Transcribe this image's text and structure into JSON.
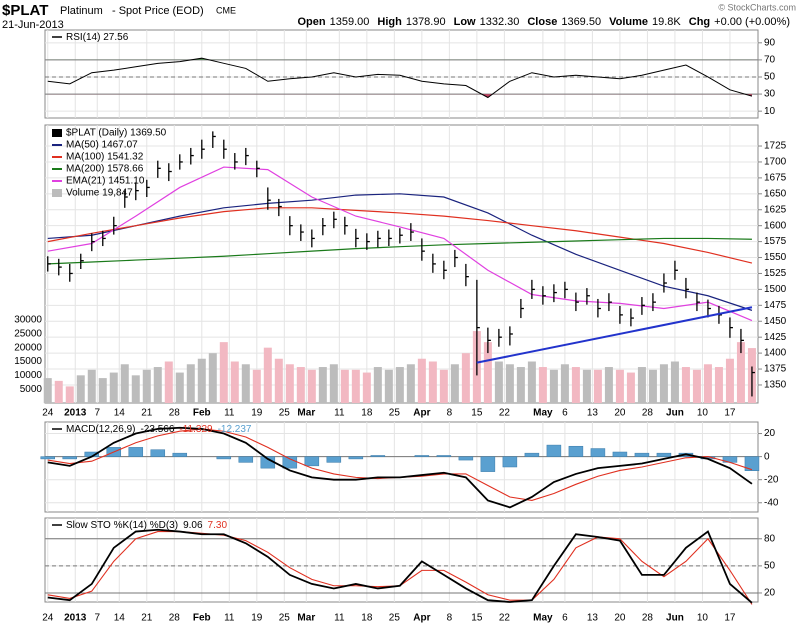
{
  "header": {
    "symbol": "$PLAT",
    "name": "Platinum",
    "desc": "- Spot Price (EOD)",
    "exchange": "CME",
    "date": "21-Jun-2013",
    "quote": [
      {
        "label": "Open",
        "value": "1359.00"
      },
      {
        "label": "High",
        "value": "1378.90"
      },
      {
        "label": "Low",
        "value": "1332.30"
      },
      {
        "label": "Close",
        "value": "1369.50"
      },
      {
        "label": "Volume",
        "value": "19.8K"
      },
      {
        "label": "Chg",
        "value": "+0.00 (+0.00%)"
      }
    ],
    "copyright": "© StockCharts.com"
  },
  "chart_data": [
    {
      "type": "line",
      "title": "RSI(14) 27.56",
      "x": [
        0,
        4,
        8,
        12,
        16,
        20,
        24,
        28,
        32,
        36,
        40,
        44,
        48,
        52,
        56,
        60,
        64,
        68,
        72,
        76,
        80,
        84,
        88,
        92,
        96,
        100,
        104,
        108,
        112,
        116,
        120,
        124,
        128
      ],
      "series": [
        {
          "color": "#000000",
          "values": [
            45,
            42,
            55,
            58,
            62,
            66,
            68,
            72,
            66,
            60,
            45,
            48,
            50,
            55,
            50,
            53,
            52,
            45,
            42,
            40,
            26,
            45,
            55,
            50,
            52,
            50,
            48,
            52,
            58,
            64,
            50,
            35,
            27.56
          ]
        }
      ],
      "ylim": [
        2,
        105
      ],
      "yticks": [
        10,
        30,
        50,
        70,
        90
      ],
      "reference_lines": [
        {
          "value": 70
        },
        {
          "value": 50,
          "dashed": true
        },
        {
          "value": 30
        }
      ],
      "fills": [
        {
          "level": 70,
          "side": "above",
          "color": "#4a8a4a"
        },
        {
          "level": 30,
          "side": "below",
          "color": "#c04060"
        }
      ]
    },
    {
      "type": "ohlc",
      "title": "$PLAT (Daily) 1369.50",
      "color": "#000000",
      "xlim": [
        -0.5,
        129.1
      ],
      "xticks": [
        {
          "value": 0,
          "label": "24"
        },
        {
          "value": 5,
          "label": "2013"
        },
        {
          "value": 9,
          "label": "7"
        },
        {
          "value": 13,
          "label": "14"
        },
        {
          "value": 18,
          "label": "21"
        },
        {
          "value": 23,
          "label": "28"
        },
        {
          "value": 28,
          "label": "Feb"
        },
        {
          "value": 33,
          "label": "11"
        },
        {
          "value": 38,
          "label": "19"
        },
        {
          "value": 43,
          "label": "25"
        },
        {
          "value": 47,
          "label": "Mar"
        },
        {
          "value": 53,
          "label": "11"
        },
        {
          "value": 58,
          "label": "18"
        },
        {
          "value": 63,
          "label": "25"
        },
        {
          "value": 68,
          "label": "Apr"
        },
        {
          "value": 73,
          "label": "8"
        },
        {
          "value": 78,
          "label": "15"
        },
        {
          "value": 83,
          "label": "22"
        },
        {
          "value": 90,
          "label": "May"
        },
        {
          "value": 94,
          "label": "6"
        },
        {
          "value": 99,
          "label": "13"
        },
        {
          "value": 104,
          "label": "20"
        },
        {
          "value": 109,
          "label": "28"
        },
        {
          "value": 114,
          "label": "Jun"
        },
        {
          "value": 119,
          "label": "10"
        },
        {
          "value": 124,
          "label": "17"
        }
      ],
      "ylim": [
        1321.7,
        1758
      ],
      "yticks": [
        1350,
        1375,
        1400,
        1425,
        1450,
        1475,
        1500,
        1525,
        1550,
        1575,
        1600,
        1625,
        1650,
        1675,
        1700,
        1725
      ],
      "x": [
        0,
        2,
        4,
        6,
        8,
        10,
        12,
        14,
        16,
        18,
        20,
        22,
        24,
        26,
        28,
        30,
        32,
        34,
        36,
        38,
        40,
        42,
        44,
        46,
        48,
        50,
        52,
        54,
        56,
        58,
        60,
        62,
        64,
        66,
        68,
        70,
        72,
        74,
        76,
        78,
        80,
        82,
        84,
        86,
        88,
        90,
        92,
        94,
        96,
        98,
        100,
        102,
        104,
        106,
        108,
        110,
        112,
        114,
        116,
        118,
        120,
        122,
        124,
        126,
        128
      ],
      "high": [
        1552,
        1548,
        1540,
        1556,
        1588,
        1592,
        1614,
        1655,
        1668,
        1672,
        1702,
        1698,
        1712,
        1722,
        1735,
        1748,
        1735,
        1714,
        1722,
        1702,
        1660,
        1642,
        1615,
        1602,
        1594,
        1612,
        1622,
        1614,
        1595,
        1588,
        1592,
        1594,
        1596,
        1604,
        1580,
        1556,
        1545,
        1562,
        1540,
        1515,
        1440,
        1438,
        1442,
        1485,
        1515,
        1505,
        1508,
        1512,
        1495,
        1502,
        1485,
        1494,
        1474,
        1470,
        1488,
        1494,
        1525,
        1545,
        1518,
        1495,
        1484,
        1474,
        1456,
        1438,
        1379
      ],
      "low": [
        1528,
        1522,
        1512,
        1532,
        1560,
        1568,
        1586,
        1628,
        1640,
        1645,
        1675,
        1670,
        1688,
        1696,
        1705,
        1722,
        1705,
        1688,
        1695,
        1676,
        1625,
        1615,
        1585,
        1576,
        1566,
        1585,
        1596,
        1586,
        1566,
        1562,
        1566,
        1568,
        1572,
        1576,
        1545,
        1526,
        1516,
        1535,
        1505,
        1365,
        1400,
        1410,
        1412,
        1455,
        1485,
        1476,
        1480,
        1486,
        1466,
        1476,
        1456,
        1466,
        1446,
        1442,
        1460,
        1466,
        1495,
        1515,
        1486,
        1466,
        1456,
        1446,
        1424,
        1400,
        1332
      ],
      "close": [
        1540,
        1535,
        1525,
        1545,
        1575,
        1580,
        1600,
        1645,
        1655,
        1660,
        1690,
        1685,
        1700,
        1710,
        1720,
        1740,
        1720,
        1700,
        1710,
        1690,
        1640,
        1630,
        1600,
        1590,
        1580,
        1600,
        1610,
        1600,
        1580,
        1575,
        1580,
        1580,
        1585,
        1590,
        1560,
        1540,
        1530,
        1550,
        1520,
        1440,
        1420,
        1425,
        1430,
        1470,
        1500,
        1490,
        1495,
        1500,
        1480,
        1490,
        1470,
        1480,
        1460,
        1455,
        1475,
        1480,
        1510,
        1530,
        1500,
        1480,
        1470,
        1460,
        1440,
        1420,
        1369.5
      ],
      "moving_averages": [
        {
          "name": "MA(50) 1467.07",
          "color": "#1a237e",
          "x": [
            0,
            8,
            16,
            24,
            32,
            40,
            48,
            56,
            64,
            72,
            80,
            88,
            96,
            104,
            112,
            120,
            128
          ],
          "values": [
            1580,
            1585,
            1600,
            1615,
            1628,
            1635,
            1640,
            1648,
            1650,
            1645,
            1620,
            1585,
            1555,
            1530,
            1505,
            1490,
            1467.07
          ]
        },
        {
          "name": "MA(100) 1541.32",
          "color": "#e03020",
          "x": [
            0,
            8,
            16,
            24,
            32,
            40,
            48,
            56,
            64,
            72,
            80,
            88,
            96,
            104,
            112,
            120,
            128
          ],
          "values": [
            1575,
            1588,
            1600,
            1612,
            1622,
            1628,
            1628,
            1624,
            1620,
            1615,
            1608,
            1600,
            1592,
            1582,
            1572,
            1558,
            1541.32
          ]
        },
        {
          "name": "MA(200) 1578.66",
          "color": "#1a7a1a",
          "x": [
            0,
            8,
            16,
            24,
            32,
            40,
            48,
            56,
            64,
            72,
            80,
            88,
            96,
            104,
            112,
            120,
            128
          ],
          "values": [
            1540,
            1543,
            1546,
            1549,
            1552,
            1556,
            1560,
            1564,
            1567,
            1570,
            1572,
            1574,
            1576,
            1578,
            1580,
            1580,
            1578.66
          ]
        },
        {
          "name": "EMA(21) 1451.10",
          "color": "#e040e0",
          "x": [
            0,
            8,
            16,
            24,
            32,
            40,
            48,
            56,
            64,
            72,
            80,
            88,
            96,
            104,
            112,
            120,
            128
          ],
          "values": [
            1560,
            1572,
            1615,
            1660,
            1692,
            1688,
            1645,
            1615,
            1598,
            1580,
            1530,
            1492,
            1482,
            1478,
            1470,
            1480,
            1451.1
          ]
        }
      ],
      "volume": {
        "name": "Volume 19,847",
        "up_color": "#bcbcbc",
        "down_color": "#f2b8c2",
        "ylim": [
          0,
          30000
        ],
        "yticks": [
          5000,
          10000,
          15000,
          20000,
          25000,
          30000
        ],
        "values": [
          9000,
          8000,
          6000,
          10000,
          12000,
          9000,
          11000,
          14000,
          10000,
          12000,
          13000,
          15000,
          11000,
          14000,
          16000,
          18000,
          22000,
          15000,
          14000,
          12000,
          20000,
          16000,
          14000,
          13000,
          12000,
          13000,
          14000,
          12000,
          12000,
          11000,
          13000,
          12000,
          13000,
          14000,
          16000,
          15000,
          12000,
          14000,
          18000,
          26000,
          22000,
          15000,
          14000,
          13000,
          15000,
          13000,
          12000,
          14000,
          13000,
          12000,
          12000,
          13000,
          12000,
          11000,
          13000,
          12000,
          14000,
          15000,
          13000,
          12000,
          14000,
          13000,
          16000,
          22000,
          19847
        ]
      },
      "trendline": {
        "color": "#2233cc",
        "x": [
          78,
          128
        ],
        "y": [
          1385,
          1472
        ]
      }
    },
    {
      "type": "macd",
      "title": "MACD(12,26,9)",
      "last_labels": [
        "-23.566",
        "-11.329",
        "-12.237"
      ],
      "x": [
        0,
        4,
        8,
        12,
        16,
        20,
        24,
        28,
        32,
        36,
        40,
        44,
        48,
        52,
        56,
        60,
        64,
        68,
        72,
        76,
        80,
        84,
        88,
        92,
        96,
        100,
        104,
        108,
        112,
        116,
        120,
        124,
        128
      ],
      "macd": {
        "color": "#000000",
        "values": [
          -5,
          -8,
          0,
          12,
          20,
          24,
          25,
          24,
          20,
          12,
          -2,
          -12,
          -18,
          -20,
          -20,
          -18,
          -18,
          -16,
          -14,
          -18,
          -38,
          -44,
          -35,
          -22,
          -15,
          -10,
          -8,
          -6,
          -2,
          2,
          -2,
          -10,
          -23.566
        ]
      },
      "signal": {
        "color": "#e03020",
        "values": [
          -3,
          -6,
          -4,
          4,
          12,
          18,
          22,
          24,
          22,
          17,
          8,
          -2,
          -10,
          -15,
          -18,
          -19,
          -18,
          -17,
          -15,
          -15,
          -25,
          -35,
          -38,
          -32,
          -24,
          -17,
          -12,
          -9,
          -5,
          -1,
          0,
          -5,
          -11.329
        ]
      },
      "histogram": {
        "color": "#5aa0d0",
        "values": [
          -2,
          -2,
          4,
          8,
          8,
          6,
          3,
          0,
          -2,
          -5,
          -10,
          -10,
          -8,
          -5,
          -2,
          1,
          0,
          1,
          1,
          -3,
          -13,
          -9,
          3,
          10,
          9,
          7,
          4,
          3,
          3,
          3,
          -2,
          -5,
          -12.237
        ]
      },
      "ylim": [
        -48,
        30
      ],
      "yticks": [
        -40,
        -20,
        0,
        20
      ],
      "reference_lines": [
        {
          "value": 0
        }
      ]
    },
    {
      "type": "stochastic",
      "title": "Slow STO %K(14) %D(3)",
      "last_labels": [
        "9.06",
        "7.30"
      ],
      "x": [
        0,
        4,
        8,
        12,
        16,
        20,
        24,
        28,
        32,
        36,
        40,
        44,
        48,
        52,
        56,
        60,
        64,
        68,
        72,
        76,
        80,
        84,
        88,
        92,
        96,
        100,
        104,
        108,
        112,
        116,
        120,
        124,
        128
      ],
      "k": {
        "color": "#000000",
        "values": [
          15,
          12,
          30,
          70,
          88,
          90,
          88,
          85,
          85,
          75,
          60,
          40,
          30,
          25,
          30,
          25,
          28,
          55,
          40,
          25,
          12,
          10,
          12,
          50,
          85,
          82,
          78,
          40,
          40,
          70,
          88,
          30,
          9.06
        ]
      },
      "d": {
        "color": "#e03020",
        "values": [
          18,
          14,
          22,
          55,
          80,
          88,
          88,
          86,
          84,
          78,
          65,
          48,
          35,
          28,
          28,
          27,
          28,
          45,
          45,
          32,
          18,
          12,
          12,
          35,
          70,
          82,
          80,
          55,
          38,
          55,
          80,
          45,
          7.3
        ]
      },
      "ylim": [
        10,
        103
      ],
      "yticks": [
        20,
        50,
        80
      ],
      "reference_lines": [
        {
          "value": 80
        },
        {
          "value": 50,
          "dashed": true
        },
        {
          "value": 20
        }
      ]
    }
  ]
}
